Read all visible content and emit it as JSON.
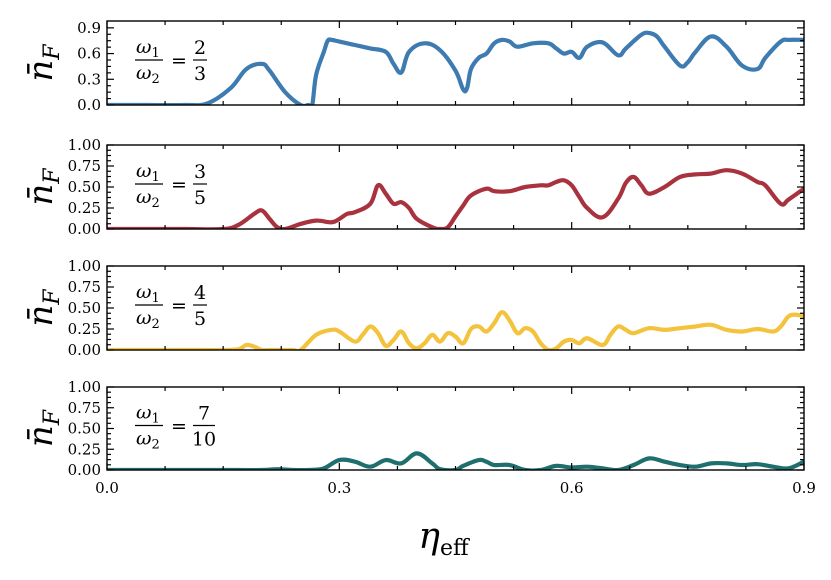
{
  "chart_data": [
    {
      "type": "line",
      "title": "",
      "ylabel": "n̄_F",
      "ylabel_main": "n̄",
      "ylabel_sub": "F",
      "ratio": {
        "num_sym": "ω",
        "num_sub": "1",
        "den_sym": "ω",
        "den_sub": "2",
        "eq": "=",
        "frac_num": "2",
        "frac_den": "3"
      },
      "color": "#3d7bb0",
      "ylim": [
        0,
        0.98
      ],
      "yticks": [
        0.0,
        0.3,
        0.6,
        0.9
      ],
      "yticklabels": [
        "0.0",
        "0.3",
        "0.6",
        "0.9"
      ],
      "x": [
        0.0,
        0.05,
        0.1,
        0.13,
        0.16,
        0.18,
        0.2,
        0.21,
        0.23,
        0.25,
        0.26,
        0.265,
        0.27,
        0.28,
        0.285,
        0.29,
        0.3,
        0.32,
        0.34,
        0.36,
        0.37,
        0.38,
        0.39,
        0.41,
        0.43,
        0.45,
        0.46,
        0.465,
        0.47,
        0.48,
        0.49,
        0.5,
        0.51,
        0.52,
        0.53,
        0.55,
        0.57,
        0.58,
        0.59,
        0.6,
        0.61,
        0.62,
        0.64,
        0.66,
        0.67,
        0.69,
        0.7,
        0.71,
        0.72,
        0.74,
        0.75,
        0.76,
        0.78,
        0.8,
        0.82,
        0.84,
        0.85,
        0.87,
        0.88,
        0.9
      ],
      "y": [
        0.0,
        0.0,
        0.0,
        0.02,
        0.2,
        0.42,
        0.48,
        0.4,
        0.15,
        0.0,
        0.0,
        0.0,
        0.35,
        0.62,
        0.75,
        0.76,
        0.74,
        0.7,
        0.66,
        0.62,
        0.48,
        0.38,
        0.62,
        0.72,
        0.64,
        0.4,
        0.18,
        0.2,
        0.42,
        0.55,
        0.6,
        0.72,
        0.76,
        0.74,
        0.68,
        0.72,
        0.72,
        0.66,
        0.6,
        0.62,
        0.55,
        0.68,
        0.73,
        0.58,
        0.66,
        0.82,
        0.84,
        0.8,
        0.68,
        0.46,
        0.5,
        0.62,
        0.8,
        0.68,
        0.46,
        0.42,
        0.55,
        0.74,
        0.76,
        0.76
      ]
    },
    {
      "type": "line",
      "title": "",
      "ylabel": "n̄_F",
      "ylabel_main": "n̄",
      "ylabel_sub": "F",
      "ratio": {
        "num_sym": "ω",
        "num_sub": "1",
        "den_sym": "ω",
        "den_sub": "2",
        "eq": "=",
        "frac_num": "3",
        "frac_den": "5"
      },
      "color": "#a8323e",
      "ylim": [
        0,
        1.0
      ],
      "yticks": [
        0.0,
        0.25,
        0.5,
        0.75,
        1.0
      ],
      "yticklabels": [
        "0.00",
        "0.25",
        "0.50",
        "0.75",
        "1.00"
      ],
      "x": [
        0.0,
        0.05,
        0.1,
        0.15,
        0.17,
        0.19,
        0.2,
        0.21,
        0.22,
        0.23,
        0.25,
        0.27,
        0.29,
        0.3,
        0.31,
        0.32,
        0.34,
        0.35,
        0.36,
        0.37,
        0.38,
        0.39,
        0.4,
        0.42,
        0.43,
        0.44,
        0.45,
        0.46,
        0.47,
        0.49,
        0.5,
        0.52,
        0.54,
        0.56,
        0.57,
        0.58,
        0.59,
        0.6,
        0.61,
        0.62,
        0.64,
        0.66,
        0.67,
        0.68,
        0.69,
        0.7,
        0.72,
        0.74,
        0.76,
        0.78,
        0.8,
        0.82,
        0.84,
        0.85,
        0.87,
        0.88,
        0.9
      ],
      "y": [
        0.0,
        0.0,
        0.0,
        0.0,
        0.05,
        0.18,
        0.22,
        0.12,
        0.02,
        0.0,
        0.06,
        0.1,
        0.08,
        0.12,
        0.18,
        0.2,
        0.3,
        0.52,
        0.42,
        0.3,
        0.32,
        0.25,
        0.12,
        0.02,
        0.0,
        0.02,
        0.15,
        0.28,
        0.4,
        0.48,
        0.45,
        0.45,
        0.5,
        0.52,
        0.52,
        0.56,
        0.58,
        0.52,
        0.38,
        0.25,
        0.14,
        0.36,
        0.55,
        0.62,
        0.52,
        0.42,
        0.5,
        0.62,
        0.65,
        0.66,
        0.7,
        0.66,
        0.56,
        0.52,
        0.3,
        0.35,
        0.48
      ]
    },
    {
      "type": "line",
      "title": "",
      "ylabel": "n̄_F",
      "ylabel_main": "n̄",
      "ylabel_sub": "F",
      "ratio": {
        "num_sym": "ω",
        "num_sub": "1",
        "den_sym": "ω",
        "den_sub": "2",
        "eq": "=",
        "frac_num": "4",
        "frac_den": "5"
      },
      "color": "#f3c33d",
      "ylim": [
        0,
        1.0
      ],
      "yticks": [
        0.0,
        0.25,
        0.5,
        0.75,
        1.0
      ],
      "yticklabels": [
        "0.00",
        "0.25",
        "0.50",
        "0.75",
        "1.00"
      ],
      "x": [
        0.0,
        0.05,
        0.1,
        0.15,
        0.17,
        0.18,
        0.19,
        0.2,
        0.21,
        0.22,
        0.24,
        0.25,
        0.27,
        0.29,
        0.3,
        0.32,
        0.33,
        0.34,
        0.35,
        0.36,
        0.37,
        0.38,
        0.39,
        0.4,
        0.41,
        0.42,
        0.43,
        0.44,
        0.45,
        0.46,
        0.47,
        0.48,
        0.49,
        0.5,
        0.51,
        0.52,
        0.53,
        0.54,
        0.55,
        0.56,
        0.57,
        0.58,
        0.59,
        0.6,
        0.61,
        0.62,
        0.64,
        0.65,
        0.66,
        0.67,
        0.68,
        0.7,
        0.72,
        0.74,
        0.76,
        0.78,
        0.8,
        0.82,
        0.84,
        0.86,
        0.87,
        0.88,
        0.89,
        0.9
      ],
      "y": [
        0.0,
        0.0,
        0.0,
        0.0,
        0.01,
        0.06,
        0.04,
        0.0,
        0.0,
        0.0,
        0.0,
        0.0,
        0.18,
        0.24,
        0.22,
        0.1,
        0.18,
        0.28,
        0.2,
        0.05,
        0.12,
        0.22,
        0.08,
        0.02,
        0.08,
        0.18,
        0.1,
        0.2,
        0.16,
        0.08,
        0.25,
        0.28,
        0.22,
        0.32,
        0.45,
        0.35,
        0.2,
        0.26,
        0.22,
        0.08,
        0.0,
        0.02,
        0.1,
        0.12,
        0.08,
        0.14,
        0.06,
        0.18,
        0.28,
        0.24,
        0.2,
        0.26,
        0.24,
        0.26,
        0.28,
        0.3,
        0.24,
        0.22,
        0.25,
        0.22,
        0.28,
        0.4,
        0.42,
        0.4
      ]
    },
    {
      "type": "line",
      "title": "",
      "ylabel": "n̄_F",
      "ylabel_main": "n̄",
      "ylabel_sub": "F",
      "ratio": {
        "num_sym": "ω",
        "num_sub": "1",
        "den_sym": "ω",
        "den_sub": "2",
        "eq": "=",
        "frac_num": "7",
        "frac_den": "10"
      },
      "color": "#1f6f6e",
      "ylim": [
        0,
        1.0
      ],
      "yticks": [
        0.0,
        0.25,
        0.5,
        0.75,
        1.0
      ],
      "yticklabels": [
        "0.00",
        "0.25",
        "0.50",
        "0.75",
        "1.00"
      ],
      "x": [
        0.0,
        0.05,
        0.1,
        0.15,
        0.2,
        0.22,
        0.24,
        0.26,
        0.28,
        0.3,
        0.32,
        0.34,
        0.36,
        0.38,
        0.4,
        0.42,
        0.43,
        0.45,
        0.46,
        0.48,
        0.49,
        0.5,
        0.52,
        0.54,
        0.56,
        0.58,
        0.6,
        0.62,
        0.64,
        0.66,
        0.68,
        0.7,
        0.72,
        0.74,
        0.76,
        0.78,
        0.8,
        0.82,
        0.84,
        0.86,
        0.88,
        0.9
      ],
      "y": [
        0.0,
        0.0,
        0.0,
        0.0,
        0.0,
        0.01,
        0.0,
        0.0,
        0.02,
        0.12,
        0.1,
        0.04,
        0.12,
        0.08,
        0.2,
        0.08,
        0.01,
        0.0,
        0.05,
        0.12,
        0.1,
        0.06,
        0.06,
        0.0,
        0.0,
        0.05,
        0.03,
        0.04,
        0.02,
        0.0,
        0.06,
        0.14,
        0.1,
        0.06,
        0.04,
        0.08,
        0.08,
        0.06,
        0.07,
        0.04,
        0.02,
        0.1
      ]
    }
  ],
  "shared": {
    "xlim": [
      0.0,
      0.9
    ],
    "xticks": [
      0.0,
      0.3,
      0.6,
      0.9
    ],
    "xticklabels": [
      "0.0",
      "0.3",
      "0.6",
      "0.9"
    ],
    "xlabel": "η_eff",
    "xlabel_main": "η",
    "xlabel_sub": "eff"
  }
}
